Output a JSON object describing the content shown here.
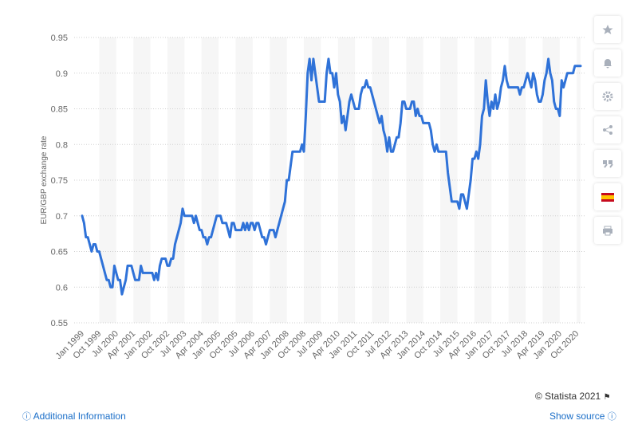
{
  "chart_data": {
    "type": "line",
    "y_label": "EUR/GBP exchange rate",
    "categories": [
      "Jan 1999",
      null,
      null,
      null,
      null,
      null,
      null,
      null,
      null,
      "Oct 1999",
      null,
      null,
      null,
      null,
      null,
      null,
      null,
      null,
      "Jul 2000",
      null,
      null,
      null,
      null,
      null,
      null,
      null,
      null,
      "Apr 2001",
      null,
      null,
      null,
      null,
      null,
      null,
      null,
      null,
      "Jan 2002",
      null,
      null,
      null,
      null,
      null,
      null,
      null,
      null,
      "Oct 2002",
      null,
      null,
      null,
      null,
      null,
      null,
      null,
      null,
      "Jul 2003",
      null,
      null,
      null,
      null,
      null,
      null,
      null,
      null,
      "Apr 2004",
      null,
      null,
      null,
      null,
      null,
      null,
      null,
      null,
      "Jan 2005",
      null,
      null,
      null,
      null,
      null,
      null,
      null,
      null,
      "Oct 2005",
      null,
      null,
      null,
      null,
      null,
      null,
      null,
      null,
      "Jul 2006",
      null,
      null,
      null,
      null,
      null,
      null,
      null,
      null,
      "Apr 2007",
      null,
      null,
      null,
      null,
      null,
      null,
      null,
      null,
      "Jan 2008",
      null,
      null,
      null,
      null,
      null,
      null,
      null,
      null,
      "Oct 2008",
      null,
      null,
      null,
      null,
      null,
      null,
      null,
      null,
      "Jul 2009",
      null,
      null,
      null,
      null,
      null,
      null,
      null,
      null,
      "Apr 2010",
      null,
      null,
      null,
      null,
      null,
      null,
      null,
      null,
      "Jan 2011",
      null,
      null,
      null,
      null,
      null,
      null,
      null,
      null,
      "Oct 2011",
      null,
      null,
      null,
      null,
      null,
      null,
      null,
      null,
      "Jul 2012",
      null,
      null,
      null,
      null,
      null,
      null,
      null,
      null,
      "Apr 2013",
      null,
      null,
      null,
      null,
      null,
      null,
      null,
      null,
      "Jan 2014",
      null,
      null,
      null,
      null,
      null,
      null,
      null,
      null,
      "Oct 2014",
      null,
      null,
      null,
      null,
      null,
      null,
      null,
      null,
      "Jul 2015",
      null,
      null,
      null,
      null,
      null,
      null,
      null,
      null,
      "Apr 2016",
      null,
      null,
      null,
      null,
      null,
      null,
      null,
      null,
      "Jan 2017",
      null,
      null,
      null,
      null,
      null,
      null,
      null,
      null,
      "Oct 2017",
      null,
      null,
      null,
      null,
      null,
      null,
      null,
      null,
      "Jul 2018",
      null,
      null,
      null,
      null,
      null,
      null,
      null,
      null,
      "Apr 2019",
      null,
      null,
      null,
      null,
      null,
      null,
      null,
      null,
      "Jan 2020",
      null,
      null,
      null,
      null,
      null,
      null,
      null,
      null,
      "Oct 2020",
      null,
      null
    ],
    "series": [
      {
        "name": "EUR/GBP exchange rate",
        "color": "#2f72d8",
        "values": [
          0.7,
          0.69,
          0.67,
          0.67,
          0.66,
          0.65,
          0.66,
          0.66,
          0.65,
          0.65,
          0.64,
          0.63,
          0.62,
          0.61,
          0.61,
          0.6,
          0.6,
          0.63,
          0.62,
          0.61,
          0.61,
          0.59,
          0.6,
          0.61,
          0.63,
          0.63,
          0.63,
          0.62,
          0.61,
          0.61,
          0.61,
          0.63,
          0.62,
          0.62,
          0.62,
          0.62,
          0.62,
          0.62,
          0.61,
          0.62,
          0.61,
          0.63,
          0.64,
          0.64,
          0.64,
          0.63,
          0.63,
          0.64,
          0.64,
          0.66,
          0.67,
          0.68,
          0.69,
          0.71,
          0.7,
          0.7,
          0.7,
          0.7,
          0.7,
          0.69,
          0.7,
          0.69,
          0.68,
          0.68,
          0.67,
          0.67,
          0.66,
          0.67,
          0.67,
          0.68,
          0.69,
          0.7,
          0.7,
          0.7,
          0.69,
          0.69,
          0.69,
          0.68,
          0.67,
          0.69,
          0.69,
          0.68,
          0.68,
          0.68,
          0.68,
          0.69,
          0.68,
          0.69,
          0.68,
          0.69,
          0.69,
          0.68,
          0.69,
          0.69,
          0.68,
          0.67,
          0.67,
          0.66,
          0.67,
          0.68,
          0.68,
          0.68,
          0.67,
          0.68,
          0.69,
          0.7,
          0.71,
          0.72,
          0.75,
          0.75,
          0.77,
          0.79,
          0.79,
          0.79,
          0.79,
          0.79,
          0.8,
          0.79,
          0.84,
          0.9,
          0.92,
          0.89,
          0.92,
          0.9,
          0.88,
          0.86,
          0.86,
          0.86,
          0.86,
          0.9,
          0.92,
          0.9,
          0.9,
          0.88,
          0.9,
          0.87,
          0.86,
          0.83,
          0.84,
          0.82,
          0.84,
          0.86,
          0.87,
          0.86,
          0.85,
          0.85,
          0.85,
          0.87,
          0.88,
          0.88,
          0.89,
          0.88,
          0.88,
          0.87,
          0.86,
          0.85,
          0.84,
          0.83,
          0.84,
          0.82,
          0.81,
          0.79,
          0.81,
          0.79,
          0.79,
          0.8,
          0.81,
          0.81,
          0.83,
          0.86,
          0.86,
          0.85,
          0.85,
          0.85,
          0.86,
          0.86,
          0.84,
          0.85,
          0.84,
          0.84,
          0.83,
          0.83,
          0.83,
          0.83,
          0.82,
          0.8,
          0.79,
          0.8,
          0.79,
          0.79,
          0.79,
          0.79,
          0.79,
          0.76,
          0.74,
          0.72,
          0.72,
          0.72,
          0.72,
          0.71,
          0.73,
          0.73,
          0.72,
          0.71,
          0.73,
          0.75,
          0.78,
          0.78,
          0.79,
          0.78,
          0.8,
          0.84,
          0.85,
          0.89,
          0.86,
          0.84,
          0.86,
          0.85,
          0.87,
          0.85,
          0.86,
          0.88,
          0.89,
          0.91,
          0.89,
          0.88,
          0.88,
          0.88,
          0.88,
          0.88,
          0.88,
          0.87,
          0.88,
          0.88,
          0.89,
          0.9,
          0.89,
          0.88,
          0.9,
          0.89,
          0.87,
          0.86,
          0.86,
          0.87,
          0.89,
          0.9,
          0.92,
          0.9,
          0.89,
          0.86,
          0.85,
          0.85,
          0.84,
          0.89,
          0.88,
          0.89,
          0.9,
          0.9,
          0.9,
          0.9,
          0.91,
          0.91,
          0.91,
          0.91
        ]
      }
    ],
    "ylim": [
      0.55,
      0.95
    ],
    "yticks": [
      0.55,
      0.6,
      0.65,
      0.7,
      0.75,
      0.8,
      0.85,
      0.9,
      0.95
    ],
    "grid": true
  },
  "footer": {
    "copyright": "© Statista 2021",
    "additional_info": "Additional Information",
    "show_source": "Show source"
  }
}
